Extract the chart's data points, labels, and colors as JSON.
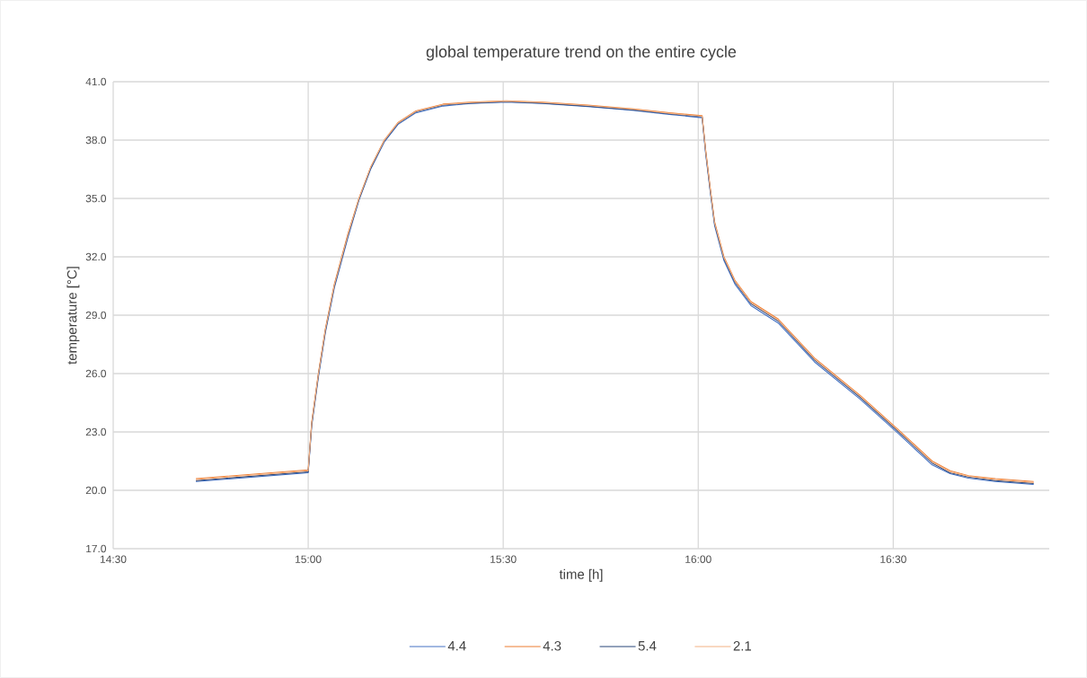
{
  "chart_data": {
    "type": "line",
    "title": "global temperature trend on the entire cycle",
    "xlabel": "time [h]",
    "ylabel": "temperature [°C]",
    "x": [
      14.712,
      15.0,
      15.009,
      15.026,
      15.044,
      15.067,
      15.102,
      15.13,
      15.16,
      15.195,
      15.23,
      15.276,
      15.346,
      15.416,
      15.508,
      15.601,
      15.717,
      15.834,
      15.926,
      16.01,
      16.019,
      16.031,
      16.042,
      16.066,
      16.094,
      16.135,
      16.205,
      16.298,
      16.414,
      16.514,
      16.6,
      16.646,
      16.693,
      16.762,
      16.86
    ],
    "series": [
      {
        "name": "4.4",
        "color": "#4472c4",
        "values": [
          20.45,
          20.9,
          23.3,
          25.8,
          28.1,
          30.4,
          33.0,
          34.9,
          36.5,
          37.9,
          38.8,
          39.4,
          39.75,
          39.88,
          39.95,
          39.88,
          39.72,
          39.52,
          39.32,
          39.15,
          37.3,
          35.3,
          33.6,
          31.8,
          30.6,
          29.5,
          28.6,
          26.6,
          24.7,
          22.9,
          21.3,
          20.85,
          20.62,
          20.45,
          20.3
        ]
      },
      {
        "name": "4.3",
        "color": "#ed7d31",
        "values": [
          20.6,
          21.05,
          23.5,
          26.0,
          28.3,
          30.6,
          33.2,
          35.0,
          36.6,
          38.0,
          38.9,
          39.5,
          39.85,
          39.95,
          40.02,
          39.95,
          39.8,
          39.6,
          39.4,
          39.25,
          37.5,
          35.5,
          33.8,
          32.0,
          30.8,
          29.7,
          28.8,
          26.8,
          24.9,
          23.1,
          21.5,
          21.0,
          20.75,
          20.6,
          20.45
        ]
      },
      {
        "name": "5.4",
        "color": "#264478",
        "values": [
          20.5,
          20.95,
          23.4,
          25.9,
          28.2,
          30.5,
          33.1,
          34.95,
          36.55,
          37.95,
          38.85,
          39.45,
          39.8,
          39.9,
          39.98,
          39.9,
          39.75,
          39.55,
          39.35,
          39.2,
          37.4,
          35.4,
          33.7,
          31.9,
          30.7,
          29.6,
          28.7,
          26.7,
          24.8,
          23.0,
          21.4,
          20.9,
          20.68,
          20.5,
          20.35
        ]
      },
      {
        "name": "2.1",
        "color": "#f4b183",
        "values": [
          20.55,
          21.0,
          23.45,
          25.95,
          28.25,
          30.55,
          33.15,
          35.0,
          36.6,
          37.98,
          38.88,
          39.48,
          39.82,
          39.93,
          40.0,
          39.93,
          39.78,
          39.58,
          39.38,
          39.22,
          37.45,
          35.45,
          33.75,
          31.95,
          30.75,
          29.65,
          28.75,
          26.75,
          24.85,
          23.05,
          21.45,
          20.95,
          20.72,
          20.55,
          20.4
        ]
      }
    ],
    "xlim": [
      14.5,
      16.9
    ],
    "xticks": [
      {
        "value": 14.5,
        "label": "14:30"
      },
      {
        "value": 15.0,
        "label": "15:00"
      },
      {
        "value": 15.5,
        "label": "15:30"
      },
      {
        "value": 16.0,
        "label": "16:00"
      },
      {
        "value": 16.5,
        "label": "16:30"
      }
    ],
    "ylim": [
      17,
      41
    ],
    "yticks": [
      {
        "value": 17,
        "label": "17.0"
      },
      {
        "value": 20,
        "label": "20.0"
      },
      {
        "value": 23,
        "label": "23.0"
      },
      {
        "value": 26,
        "label": "26.0"
      },
      {
        "value": 29,
        "label": "29.0"
      },
      {
        "value": 32,
        "label": "32.0"
      },
      {
        "value": 35,
        "label": "35.0"
      },
      {
        "value": 38,
        "label": "38.0"
      },
      {
        "value": 41,
        "label": "41.0"
      }
    ],
    "grid": true,
    "legend": "bottom",
    "marker": "none",
    "line_style": "solid"
  }
}
